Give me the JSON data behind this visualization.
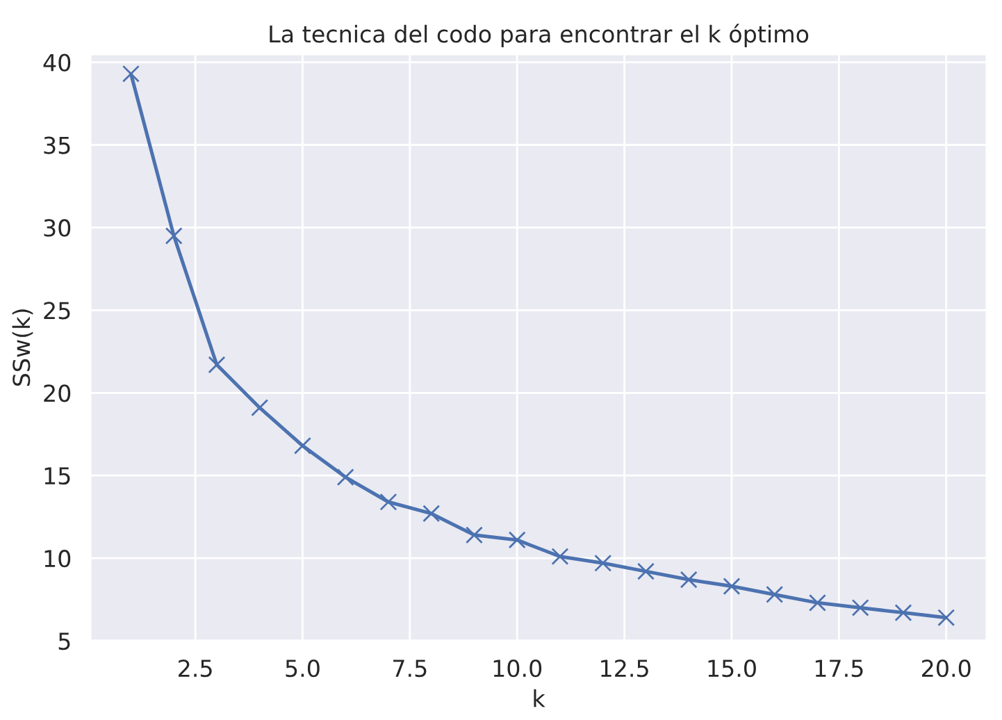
{
  "chart_data": {
    "type": "line",
    "title": "La tecnica del codo para encontrar el k óptimo",
    "xlabel": "k",
    "ylabel": "SSw(k)",
    "x": [
      1,
      2,
      3,
      4,
      5,
      6,
      7,
      8,
      9,
      10,
      11,
      12,
      13,
      14,
      15,
      16,
      17,
      18,
      19,
      20
    ],
    "series": [
      {
        "color": "#4c72b0",
        "values": [
          39.3,
          29.5,
          21.7,
          19.1,
          16.8,
          14.9,
          13.4,
          12.7,
          11.4,
          11.1,
          10.1,
          9.7,
          9.2,
          8.7,
          8.3,
          7.8,
          7.3,
          7.0,
          6.7,
          6.4
        ]
      }
    ],
    "xlim": [
      0.05,
      20.95
    ],
    "xticks": [
      {
        "value": 2.5,
        "label": "2.5"
      },
      {
        "value": 5,
        "label": "5.0"
      },
      {
        "value": 7.5,
        "label": "7.5"
      },
      {
        "value": 10,
        "label": "10.0"
      },
      {
        "value": 12.5,
        "label": "12.5"
      },
      {
        "value": 15,
        "label": "15.0"
      },
      {
        "value": 17.5,
        "label": "17.5"
      },
      {
        "value": 20,
        "label": "20.0"
      }
    ],
    "ylim": [
      5,
      40.5
    ],
    "yticks": [
      5,
      10,
      15,
      20,
      25,
      30,
      35,
      40
    ],
    "grid": true,
    "marker": "cross",
    "line_style": "solid"
  }
}
